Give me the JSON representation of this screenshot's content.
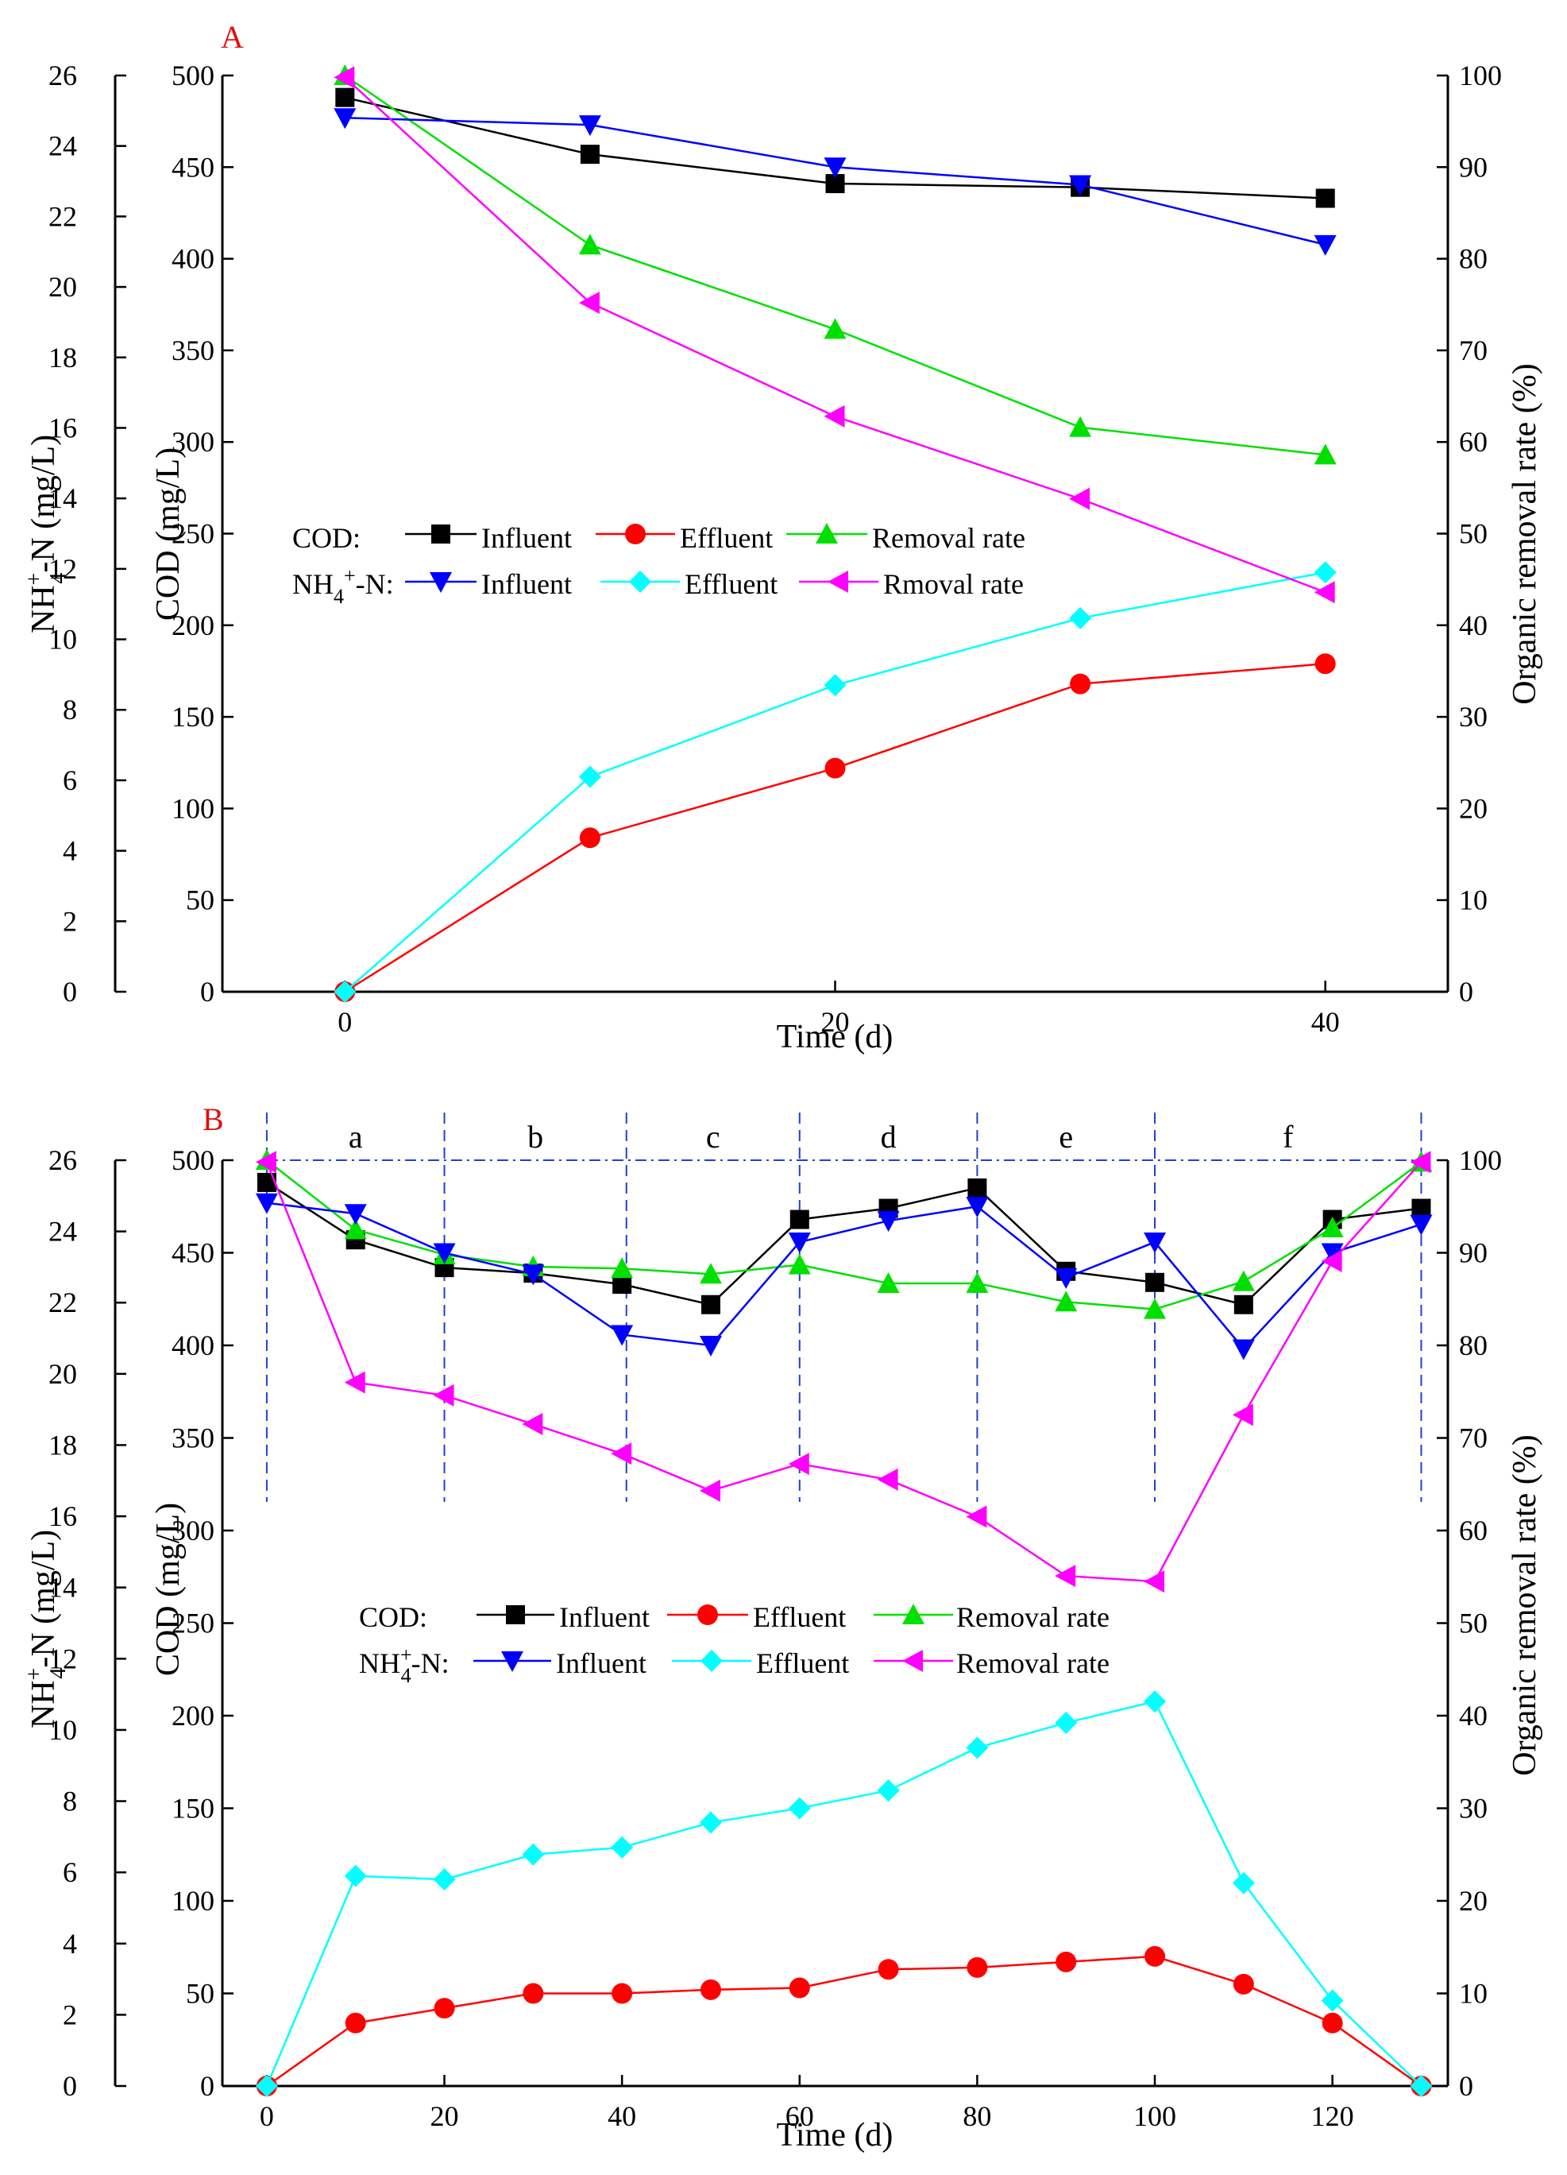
{
  "colors": {
    "cod_influent": "#000000",
    "cod_effluent": "#ff0000",
    "cod_removal": "#00e000",
    "nh4_influent": "#0000ff",
    "nh4_effluent": "#00ffff",
    "nh4_removal": "#ff00ff",
    "panel_label": "#e01010",
    "phase_line": "#2040d0"
  },
  "legend": {
    "cod_prefix": "COD:",
    "nh4_prefix_main": "NH",
    "nh4_prefix_sub": "4",
    "nh4_prefix_sup": "+",
    "nh4_prefix_tail": "-N:"
  },
  "chart_data": [
    {
      "type": "line",
      "panel_label": "A",
      "xlabel": "Time (d)",
      "ylabel_outer": "NH4+-N (mg/L)",
      "ylabel_outer_parts": {
        "main": "NH",
        "sub": "4",
        "sup": "+",
        "tail": "-N (mg/L)"
      },
      "ylabel_inner": "COD (mg/L)",
      "ylabel_right": "Organic removal rate (%)",
      "xlim": [
        -5,
        45
      ],
      "xticks": [
        0,
        20,
        40
      ],
      "ylim_nh4": [
        0,
        26
      ],
      "ylim_cod": [
        0,
        500
      ],
      "ylim_rate": [
        0,
        100
      ],
      "yticks_nh4": [
        0,
        2,
        4,
        6,
        8,
        10,
        12,
        14,
        16,
        18,
        20,
        22,
        24,
        26
      ],
      "yticks_cod": [
        0,
        50,
        100,
        150,
        200,
        250,
        300,
        350,
        400,
        450,
        500
      ],
      "yticks_rate": [
        0,
        10,
        20,
        30,
        40,
        50,
        60,
        70,
        80,
        90,
        100
      ],
      "legend_labels": [
        "Influent",
        "Effluent",
        "Removal rate",
        "Influent",
        "Effluent",
        "Rmoval rate"
      ],
      "series": [
        {
          "name": "COD Influent",
          "axis": "cod",
          "marker": "square",
          "x": [
            0,
            10,
            20,
            30,
            40
          ],
          "values": [
            488,
            457,
            441,
            439,
            433
          ]
        },
        {
          "name": "COD Effluent",
          "axis": "cod",
          "marker": "circle",
          "x": [
            0,
            10,
            20,
            30,
            40
          ],
          "values": [
            0,
            84,
            122,
            168,
            179
          ]
        },
        {
          "name": "COD Removal rate",
          "axis": "rate",
          "marker": "triangle-up",
          "x": [
            0,
            10,
            20,
            30,
            40
          ],
          "values": [
            100,
            81.5,
            72.3,
            61.6,
            58.6
          ]
        },
        {
          "name": "NH4+-N Influent",
          "axis": "nh4",
          "marker": "triangle-down",
          "x": [
            0,
            10,
            20,
            30,
            40
          ],
          "values": [
            24.8,
            24.6,
            23.4,
            22.9,
            21.2
          ]
        },
        {
          "name": "NH4+-N Effluent",
          "axis": "nh4",
          "marker": "diamond",
          "x": [
            0,
            10,
            20,
            30,
            40
          ],
          "values": [
            0,
            6.1,
            8.7,
            10.6,
            11.9
          ]
        },
        {
          "name": "NH4+-N Rmoval rate",
          "axis": "rate",
          "marker": "triangle-left",
          "x": [
            0,
            10,
            20,
            30,
            40
          ],
          "values": [
            99.8,
            75.2,
            62.8,
            53.8,
            43.6
          ]
        }
      ]
    },
    {
      "type": "line",
      "panel_label": "B",
      "xlabel": "Time (d)",
      "ylabel_outer": "NH+4-N (mg/L)",
      "ylabel_outer_parts": {
        "main": "NH",
        "sub": "4",
        "sup": "+",
        "tail": "-N (mg/L)"
      },
      "ylabel_inner": "COD (mg/L)",
      "ylabel_right": "Organic removal rate (%)",
      "xlim": [
        -5,
        133
      ],
      "xticks": [
        0,
        20,
        40,
        60,
        80,
        100,
        120
      ],
      "ylim_nh4": [
        0,
        26
      ],
      "ylim_cod": [
        0,
        500
      ],
      "ylim_rate": [
        0,
        100
      ],
      "yticks_nh4": [
        0,
        2,
        4,
        6,
        8,
        10,
        12,
        14,
        16,
        18,
        20,
        22,
        24,
        26
      ],
      "yticks_cod": [
        0,
        50,
        100,
        150,
        200,
        250,
        300,
        350,
        400,
        450,
        500
      ],
      "yticks_rate": [
        0,
        10,
        20,
        30,
        40,
        50,
        60,
        70,
        80,
        90,
        100
      ],
      "phase_boundaries": [
        0,
        20,
        40.5,
        60,
        80,
        100,
        130
      ],
      "phase_labels": [
        "a",
        "b",
        "c",
        "d",
        "e",
        "f"
      ],
      "legend_labels": [
        "Influent",
        "Effluent",
        "Removal rate",
        "Influent",
        "Effluent",
        "Removal rate"
      ],
      "series": [
        {
          "name": "COD Influent",
          "axis": "cod",
          "marker": "square",
          "x": [
            0,
            10,
            20,
            30,
            40,
            50,
            60,
            70,
            80,
            90,
            100,
            110,
            120,
            130
          ],
          "values": [
            488,
            457,
            442,
            439,
            433,
            422,
            468,
            474,
            485,
            440,
            434,
            422,
            468,
            474
          ]
        },
        {
          "name": "COD Effluent",
          "axis": "cod",
          "marker": "circle",
          "x": [
            0,
            10,
            20,
            30,
            40,
            50,
            60,
            70,
            80,
            90,
            100,
            110,
            120,
            130
          ],
          "values": [
            0,
            34,
            42,
            50,
            50,
            52,
            53,
            63,
            64,
            67,
            70,
            55,
            34,
            0
          ]
        },
        {
          "name": "COD Removal rate",
          "axis": "rate",
          "marker": "triangle-up",
          "x": [
            0,
            10,
            20,
            30,
            40,
            50,
            60,
            70,
            80,
            90,
            100,
            110,
            120,
            130
          ],
          "values": [
            100,
            92.5,
            89.8,
            88.5,
            88.3,
            87.7,
            88.7,
            86.7,
            86.7,
            84.7,
            83.9,
            86.9,
            92.7,
            99.8
          ]
        },
        {
          "name": "NH4+-N Influent",
          "axis": "nh4",
          "marker": "triangle-down",
          "x": [
            0,
            10,
            20,
            30,
            40,
            50,
            60,
            70,
            80,
            90,
            100,
            110,
            120,
            130
          ],
          "values": [
            24.8,
            24.5,
            23.4,
            22.8,
            21.1,
            20.8,
            23.7,
            24.3,
            24.7,
            22.7,
            23.7,
            20.7,
            23.4,
            24.2
          ]
        },
        {
          "name": "NH4+-N Effluent",
          "axis": "nh4",
          "marker": "diamond",
          "x": [
            0,
            10,
            20,
            30,
            40,
            50,
            60,
            70,
            80,
            90,
            100,
            110,
            120,
            130
          ],
          "values": [
            0,
            5.9,
            5.8,
            6.5,
            6.7,
            7.4,
            7.8,
            8.3,
            9.5,
            10.2,
            10.8,
            5.7,
            2.4,
            0
          ]
        },
        {
          "name": "NH4+-N Removal rate",
          "axis": "rate",
          "marker": "triangle-left",
          "x": [
            0,
            10,
            20,
            30,
            40,
            50,
            60,
            70,
            80,
            90,
            100,
            110,
            120,
            130
          ],
          "values": [
            99.8,
            76,
            74.6,
            71.5,
            68.3,
            64.3,
            67.2,
            65.5,
            61.5,
            55.1,
            54.5,
            72.5,
            89.1,
            99.8
          ]
        }
      ]
    }
  ]
}
